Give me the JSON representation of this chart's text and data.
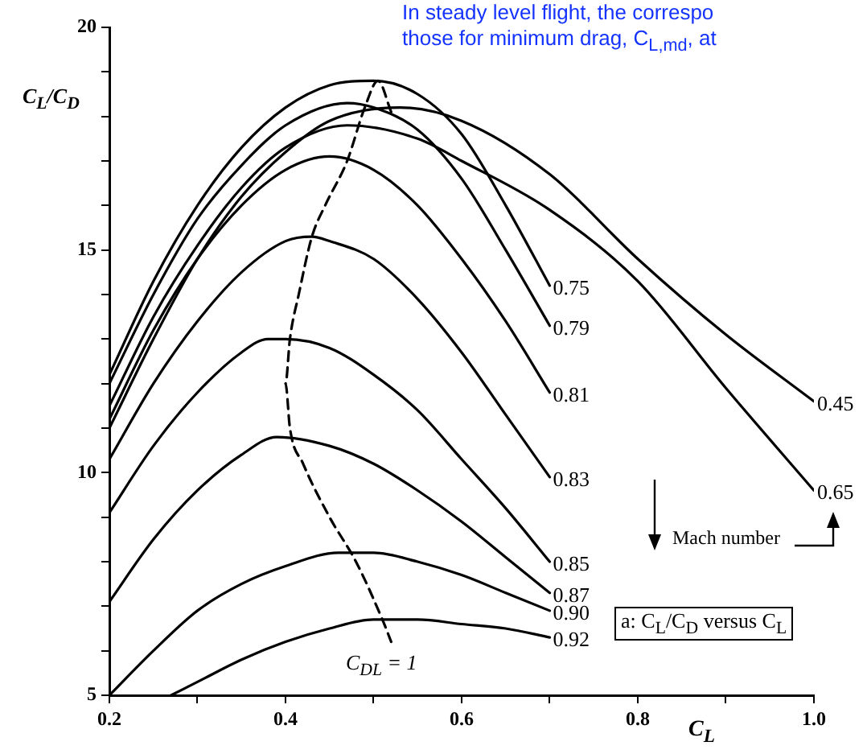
{
  "chart_data": {
    "type": "line",
    "xlabel": "C$_{L}$",
    "ylabel": "C$_{L}$/C$_{D}$",
    "xlim": [
      0.2,
      1.0
    ],
    "ylim": [
      5,
      20
    ],
    "xticks": [
      0.2,
      {
        "value": 0.3,
        "label": null
      },
      0.4,
      {
        "value": 0.5,
        "label": null
      },
      0.6,
      {
        "value": 0.7,
        "label": null
      },
      0.8,
      {
        "value": 0.9,
        "label": null
      },
      {
        "value": 1.0,
        "label": "1.0"
      }
    ],
    "yticks": [
      5,
      {
        "value": 6,
        "label": null
      },
      {
        "value": 7,
        "label": null
      },
      {
        "value": 8,
        "label": null
      },
      {
        "value": 9,
        "label": null
      },
      10,
      {
        "value": 11,
        "label": null
      },
      {
        "value": 12,
        "label": null
      },
      {
        "value": 13,
        "label": null
      },
      {
        "value": 14,
        "label": null
      },
      15,
      {
        "value": 16,
        "label": null
      },
      {
        "value": 17,
        "label": null
      },
      {
        "value": 18,
        "label": null
      },
      {
        "value": 19,
        "label": null
      },
      20
    ],
    "grid": false,
    "legend": false,
    "marker": "none",
    "series": [
      {
        "name": "0.75",
        "color": "#000000",
        "x": [
          0.2,
          0.25,
          0.3,
          0.35,
          0.4,
          0.45,
          0.5,
          0.55,
          0.6,
          0.65,
          0.7
        ],
        "values": [
          12.2,
          14.3,
          16.0,
          17.3,
          18.2,
          18.7,
          18.8,
          18.5,
          17.6,
          16.0,
          14.2
        ]
      },
      {
        "name": "0.79",
        "color": "#000000",
        "x": [
          0.2,
          0.25,
          0.3,
          0.35,
          0.4,
          0.47,
          0.5,
          0.55,
          0.6,
          0.65,
          0.7
        ],
        "values": [
          12.0,
          14.0,
          15.7,
          16.9,
          17.8,
          18.3,
          18.2,
          17.7,
          16.6,
          15.0,
          13.3
        ]
      },
      {
        "name": "0.81",
        "color": "#000000",
        "x": [
          0.2,
          0.25,
          0.3,
          0.35,
          0.4,
          0.45,
          0.5,
          0.55,
          0.6,
          0.65,
          0.7
        ],
        "values": [
          11.2,
          13.2,
          14.8,
          16.0,
          16.8,
          17.1,
          16.8,
          16.0,
          14.8,
          13.4,
          11.8
        ]
      },
      {
        "name": "0.83",
        "color": "#000000",
        "x": [
          0.2,
          0.25,
          0.3,
          0.35,
          0.4,
          0.43,
          0.45,
          0.5,
          0.55,
          0.6,
          0.65,
          0.7
        ],
        "values": [
          10.3,
          12.0,
          13.4,
          14.5,
          15.2,
          15.3,
          15.2,
          14.8,
          13.9,
          12.7,
          11.3,
          9.9
        ]
      },
      {
        "name": "0.85",
        "color": "#000000",
        "x": [
          0.2,
          0.25,
          0.3,
          0.35,
          0.38,
          0.4,
          0.45,
          0.5,
          0.55,
          0.6,
          0.65,
          0.7
        ],
        "values": [
          9.1,
          10.6,
          11.8,
          12.7,
          13.0,
          13.0,
          12.8,
          12.2,
          11.4,
          10.3,
          9.2,
          8.0
        ]
      },
      {
        "name": "0.87",
        "color": "#000000",
        "x": [
          0.2,
          0.25,
          0.3,
          0.35,
          0.39,
          0.45,
          0.5,
          0.55,
          0.6,
          0.65,
          0.7
        ],
        "values": [
          7.1,
          8.5,
          9.6,
          10.4,
          10.8,
          10.6,
          10.2,
          9.6,
          8.9,
          8.1,
          7.3
        ]
      },
      {
        "name": "0.90",
        "color": "#000000",
        "x": [
          0.2,
          0.25,
          0.3,
          0.35,
          0.4,
          0.46,
          0.5,
          0.55,
          0.6,
          0.65,
          0.7
        ],
        "values": [
          5.0,
          6.0,
          6.9,
          7.5,
          7.9,
          8.2,
          8.2,
          8.0,
          7.7,
          7.3,
          6.9
        ]
      },
      {
        "name": "0.92",
        "color": "#000000",
        "x": [
          0.27,
          0.3,
          0.35,
          0.4,
          0.45,
          0.5,
          0.55,
          0.6,
          0.65,
          0.7
        ],
        "values": [
          5.0,
          5.3,
          5.8,
          6.2,
          6.5,
          6.7,
          6.7,
          6.6,
          6.5,
          6.3
        ]
      },
      {
        "name": "0.45",
        "color": "#000000",
        "x": [
          0.2,
          0.25,
          0.3,
          0.35,
          0.4,
          0.45,
          0.53,
          0.6,
          0.7,
          0.8,
          0.9,
          1.0
        ],
        "values": [
          11.0,
          13.0,
          14.8,
          16.2,
          17.2,
          17.9,
          18.2,
          17.9,
          16.7,
          14.8,
          13.1,
          11.6
        ]
      },
      {
        "name": "0.65",
        "color": "#000000",
        "x": [
          0.2,
          0.25,
          0.3,
          0.35,
          0.4,
          0.47,
          0.55,
          0.6,
          0.7,
          0.8,
          0.9,
          1.0
        ],
        "values": [
          11.5,
          13.5,
          15.1,
          16.4,
          17.3,
          17.8,
          17.5,
          17.0,
          15.9,
          14.3,
          11.9,
          9.6
        ]
      },
      {
        "color": "#000000",
        "line_style": "dashed",
        "x": [
          0.52,
          0.505,
          0.49,
          0.47,
          0.445,
          0.43,
          0.415,
          0.405,
          0.4,
          0.405,
          0.42,
          0.45,
          0.48,
          0.51,
          0.52
        ],
        "values": [
          18.1,
          18.8,
          18.2,
          17.0,
          16.0,
          15.3,
          14.0,
          13.0,
          12.0,
          11.0,
          10.2,
          9.0,
          8.0,
          6.7,
          6.2
        ]
      }
    ],
    "annotations": [
      "In steady level flight, the correspo",
      "those for minimum drag, C$_{L,md}$, at",
      "Mach number",
      "a: C$_{L}$/C$_{D}$ versus C$_{L}$",
      "C$_{DL}$ = 1"
    ]
  }
}
